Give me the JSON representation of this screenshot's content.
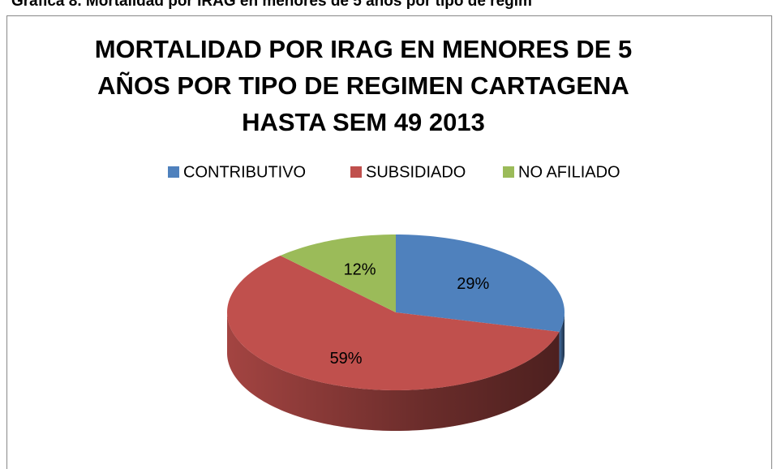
{
  "caption": "Gráfica 8. Mortalidad por IRAG en menores de 5 años por tipo de regim",
  "chart_data": {
    "type": "pie",
    "title": "MORTALIDAD POR IRAG EN MENORES DE 5 AÑOS POR TIPO DE REGIMEN CARTAGENA HASTA SEM 49 2013",
    "categories": [
      "CONTRIBUTIVO",
      "SUBSIDIADO",
      "NO AFILIADO"
    ],
    "values": [
      29,
      59,
      12
    ],
    "value_labels": [
      "29%",
      "59%",
      "12%"
    ],
    "colors": [
      "#4f81bd",
      "#c0504d",
      "#9bbb59"
    ],
    "legend": "top"
  }
}
